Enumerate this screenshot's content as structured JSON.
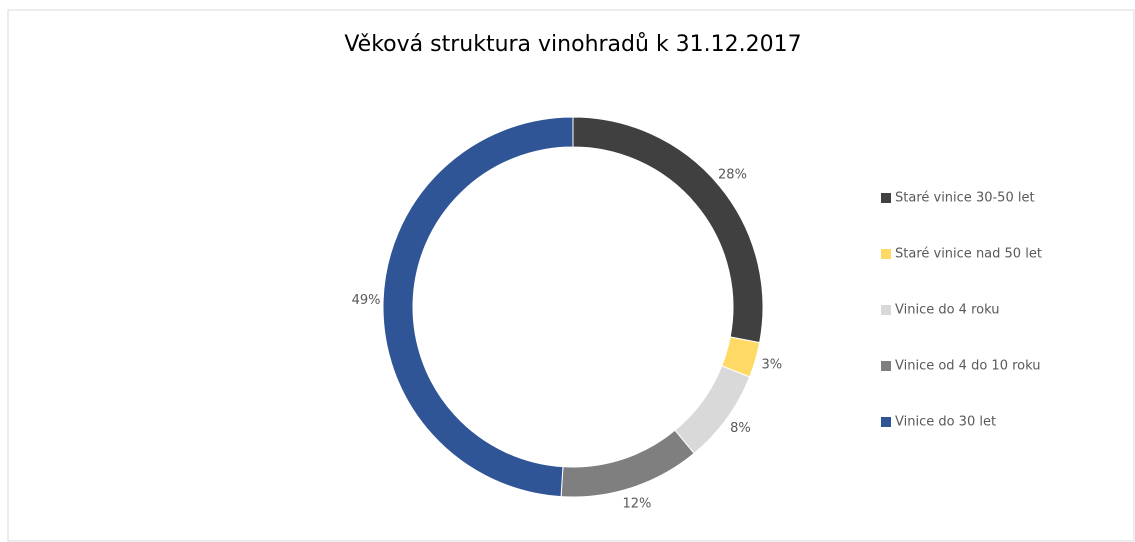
{
  "chart_data": {
    "type": "donut",
    "title": "Věková struktura vinohradů k 31.12.2017",
    "categories": [
      "Staré vinice 30-50 let",
      "Staré vinice nad 50 let",
      "Vinice do 4 roku",
      "Vinice od 4 do 10 roku",
      "Vinice do 30 let"
    ],
    "values": [
      28,
      3,
      8,
      12,
      49
    ],
    "value_labels": [
      "28%",
      "3%",
      "8%",
      "12%",
      "49%"
    ],
    "colors": [
      "#404040",
      "#ffd966",
      "#d9d9d9",
      "#7f7f7f",
      "#2f5597"
    ],
    "legend": "right"
  }
}
